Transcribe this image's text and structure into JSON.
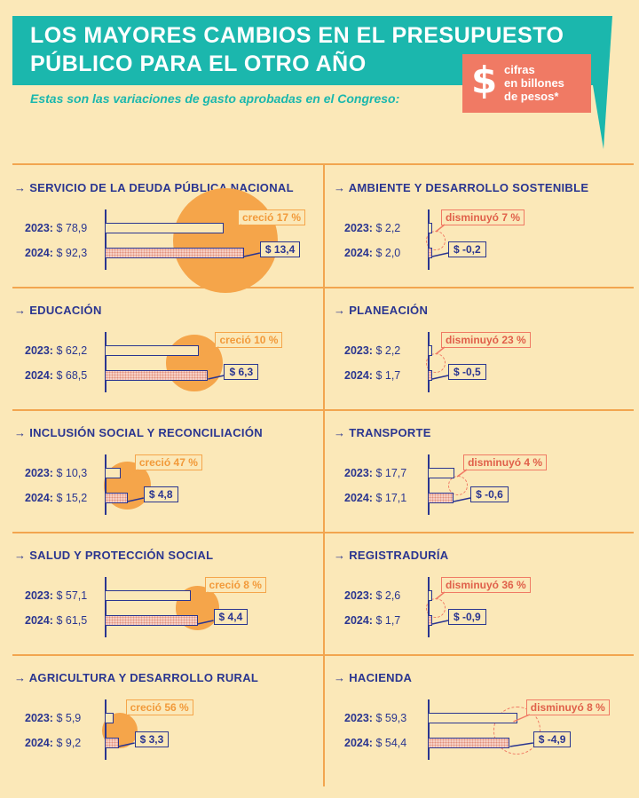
{
  "header": {
    "title_line1": "LOS MAYORES CAMBIOS EN EL PRESUPUESTO",
    "title_line2": "PÚBLICO PARA EL OTRO AÑO",
    "subtitle": "Estas son las variaciones de gasto aprobadas en el Congreso:",
    "units_symbol": "$",
    "units_line1": "cifras",
    "units_line2": "en billones",
    "units_line3": "de pesos*"
  },
  "colors": {
    "background": "#fbe8b8",
    "teal": "#1bb7ad",
    "navy": "#2a3590",
    "increase": "#f5a54a",
    "decrease": "#f07a64"
  },
  "row_labels": {
    "y2023": "2023:",
    "y2024": "2024:"
  },
  "chart_data": {
    "type": "bar",
    "title": "LOS MAYORES CAMBIOS EN EL PRESUPUESTO PÚBLICO PARA EL OTRO AÑO",
    "subtitle": "Estas son las variaciones de gasto aprobadas en el Congreso:",
    "unit_note": "cifras en billones de pesos*",
    "series_names": [
      "2023",
      "2024"
    ],
    "panels": [
      {
        "name": "SERVICIO DE LA DEUDA PÚBLICA NACIONAL",
        "v2023": 78.9,
        "v2024": 92.3,
        "v2023_text": "$ 78,9",
        "v2024_text": "$ 92,3",
        "direction": "up",
        "pct_text": "creció 17 %",
        "diff_text": "$ 13,4"
      },
      {
        "name": "AMBIENTE Y DESARROLLO SOSTENIBLE",
        "v2023": 2.2,
        "v2024": 2.0,
        "v2023_text": "$ 2,2",
        "v2024_text": "$ 2,0",
        "direction": "down",
        "pct_text": "disminuyó 7 %",
        "diff_text": "$ -0,2"
      },
      {
        "name": "EDUCACIÓN",
        "v2023": 62.2,
        "v2024": 68.5,
        "v2023_text": "$ 62,2",
        "v2024_text": "$ 68,5",
        "direction": "up",
        "pct_text": "creció 10 %",
        "diff_text": "$ 6,3"
      },
      {
        "name": "PLANEACIÓN",
        "v2023": 2.2,
        "v2024": 1.7,
        "v2023_text": "$ 2,2",
        "v2024_text": "$ 1,7",
        "direction": "down",
        "pct_text": "disminuyó 23 %",
        "diff_text": "$ -0,5"
      },
      {
        "name": "INCLUSIÓN SOCIAL Y RECONCILIACIÓN",
        "v2023": 10.3,
        "v2024": 15.2,
        "v2023_text": "$ 10,3",
        "v2024_text": "$ 15,2",
        "direction": "up",
        "pct_text": "creció 47 %",
        "diff_text": "$ 4,8"
      },
      {
        "name": "TRANSPORTE",
        "v2023": 17.7,
        "v2024": 17.1,
        "v2023_text": "$ 17,7",
        "v2024_text": "$ 17,1",
        "direction": "down",
        "pct_text": "disminuyó 4 %",
        "diff_text": "$ -0,6"
      },
      {
        "name": "SALUD Y PROTECCIÓN SOCIAL",
        "v2023": 57.1,
        "v2024": 61.5,
        "v2023_text": "$ 57,1",
        "v2024_text": "$ 61,5",
        "direction": "up",
        "pct_text": "creció 8 %",
        "diff_text": "$ 4,4"
      },
      {
        "name": "REGISTRADURÍA",
        "v2023": 2.6,
        "v2024": 1.7,
        "v2023_text": "$ 2,6",
        "v2024_text": "$ 1,7",
        "direction": "down",
        "pct_text": "disminuyó 36 %",
        "diff_text": "$ -0,9"
      },
      {
        "name": "AGRICULTURA Y DESARROLLO RURAL",
        "v2023": 5.9,
        "v2024": 9.2,
        "v2023_text": "$ 5,9",
        "v2024_text": "$ 9,2",
        "direction": "up",
        "pct_text": "creció 56 %",
        "diff_text": "$ 3,3"
      },
      {
        "name": "HACIENDA",
        "v2023": 59.3,
        "v2024": 54.4,
        "v2023_text": "$ 59,3",
        "v2024_text": "$ 54,4",
        "direction": "down",
        "pct_text": "disminuyó 8 %",
        "diff_text": "$ -4,9"
      }
    ]
  }
}
